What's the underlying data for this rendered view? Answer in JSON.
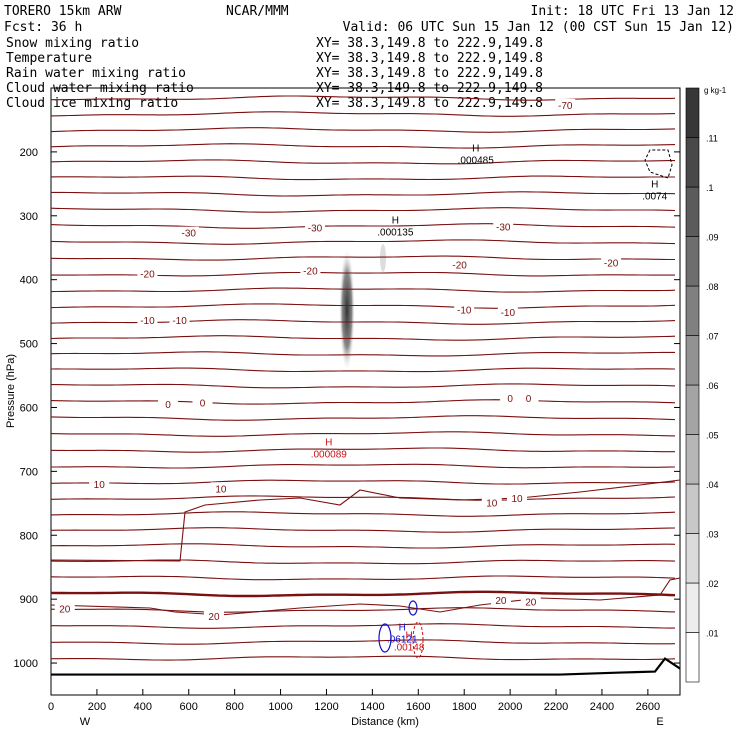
{
  "header": {
    "model": "TORERO  15km ARW",
    "org": "NCAR/MMM",
    "init": "Init: 18 UTC Fri 13 Jan 12",
    "fcst": "Fcst:   36 h",
    "valid": "Valid: 06 UTC Sun 15 Jan 12 (00 CST Sun 15 Jan 12)"
  },
  "fields": [
    {
      "name": "Snow mixing ratio",
      "xy": "XY=  38.3,149.8 to 222.9,149.8",
      "color": "#000000"
    },
    {
      "name": "Temperature",
      "xy": "XY=  38.3,149.8 to 222.9,149.8",
      "color": "#cc1111"
    },
    {
      "name": "Rain water mixing ratio",
      "xy": "XY=  38.3,149.8 to 222.9,149.8",
      "color": "#cc1111"
    },
    {
      "name": "Cloud water mixing ratio",
      "xy": "XY=  38.3,149.8 to 222.9,149.8",
      "color": "#1111cc"
    },
    {
      "name": "Cloud ice mixing ratio",
      "xy": "XY=  38.3,149.8 to 222.9,149.8",
      "color": "#000000"
    }
  ],
  "chart_data": {
    "type": "contour-cross-section",
    "xlabel": "Distance (km)",
    "ylabel": "Pressure (hPa)",
    "xlim": [
      0,
      2740
    ],
    "ylim": [
      1050,
      100
    ],
    "x_ticks": [
      0,
      200,
      400,
      600,
      800,
      1000,
      1200,
      1400,
      1600,
      1800,
      2000,
      2200,
      2400,
      2600
    ],
    "y_ticks": [
      200,
      300,
      400,
      500,
      600,
      700,
      800,
      900,
      1000
    ],
    "endpoints": {
      "left": "W",
      "right": "E"
    },
    "colorbar": {
      "unit": "g kg-1",
      "levels": [
        ".01",
        ".02",
        ".03",
        ".04",
        ".05",
        ".06",
        ".07",
        ".08",
        ".09",
        ".1",
        ".11"
      ]
    },
    "temperature_labels": [
      {
        "text": "-70",
        "x": 2240,
        "p": 128
      },
      {
        "text": "-30",
        "x": 600,
        "p": 328
      },
      {
        "text": "-30",
        "x": 1150,
        "p": 320
      },
      {
        "text": "-30",
        "x": 1970,
        "p": 318
      },
      {
        "text": "-20",
        "x": 420,
        "p": 392
      },
      {
        "text": "-20",
        "x": 1130,
        "p": 387
      },
      {
        "text": "-20",
        "x": 1780,
        "p": 378
      },
      {
        "text": "-20",
        "x": 2440,
        "p": 375
      },
      {
        "text": "-10",
        "x": 420,
        "p": 465
      },
      {
        "text": "-10",
        "x": 560,
        "p": 465
      },
      {
        "text": "-10",
        "x": 1800,
        "p": 448
      },
      {
        "text": "-10",
        "x": 1990,
        "p": 452
      },
      {
        "text": "0",
        "x": 510,
        "p": 596
      },
      {
        "text": "0",
        "x": 660,
        "p": 594
      },
      {
        "text": "0",
        "x": 2000,
        "p": 587
      },
      {
        "text": "0",
        "x": 2080,
        "p": 587
      },
      {
        "text": "10",
        "x": 210,
        "p": 721
      },
      {
        "text": "10",
        "x": 740,
        "p": 728
      },
      {
        "text": "10",
        "x": 1920,
        "p": 750
      },
      {
        "text": "10",
        "x": 2030,
        "p": 743
      },
      {
        "text": "20",
        "x": 60,
        "p": 916
      },
      {
        "text": "20",
        "x": 710,
        "p": 928
      },
      {
        "text": "20",
        "x": 1960,
        "p": 903
      },
      {
        "text": "20",
        "x": 2090,
        "p": 905
      }
    ],
    "extrema": [
      {
        "label": "H",
        "value": ".000485",
        "x": 1850,
        "p": 206,
        "color": "#000000"
      },
      {
        "label": "H",
        "value": ".000135",
        "x": 1500,
        "p": 318,
        "color": "#000000"
      },
      {
        "label": "H",
        "value": ".0074",
        "x": 2630,
        "p": 262,
        "color": "#000000"
      },
      {
        "label": "H",
        "value": ".000089",
        "x": 1210,
        "p": 666,
        "color": "#cc1111"
      },
      {
        "label": "H",
        "value": ".06121",
        "x": 1530,
        "p": 955,
        "color": "#1111cc"
      },
      {
        "label": "H",
        "value": ".00148",
        "x": 1560,
        "p": 968,
        "color": "#cc1111"
      }
    ],
    "snow_column": {
      "x": 1300,
      "p_top": 350,
      "p_bottom": 560
    },
    "terrain_p": 1018
  }
}
